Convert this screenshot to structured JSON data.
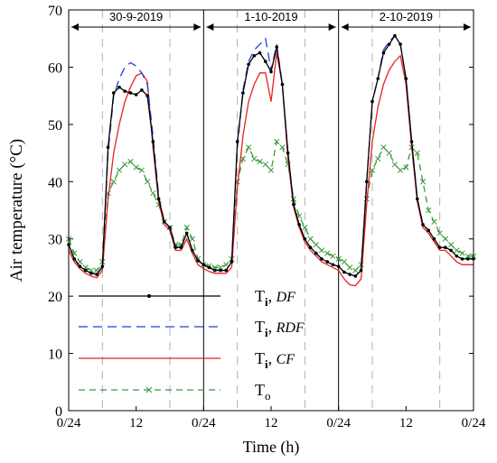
{
  "chart_data": {
    "type": "line",
    "xlabel": "Time (h)",
    "ylabel": "Air temperature (°C)",
    "xlim": [
      0,
      72
    ],
    "ylim": [
      0,
      70
    ],
    "x_ticks": [
      {
        "value": 0,
        "label": "0/24"
      },
      {
        "value": 12,
        "label": "12"
      },
      {
        "value": 24,
        "label": "0/24"
      },
      {
        "value": 36,
        "label": "12"
      },
      {
        "value": 48,
        "label": "0/24"
      },
      {
        "value": 60,
        "label": "12"
      },
      {
        "value": 72,
        "label": "0/24"
      }
    ],
    "y_ticks": [
      0,
      10,
      20,
      30,
      40,
      50,
      60,
      70
    ],
    "dashed_gridlines_h": [
      6,
      18,
      30,
      42,
      54,
      66
    ],
    "day_labels": [
      {
        "label": "30-9-2019",
        "start": 0,
        "end": 24
      },
      {
        "label": "1-10-2019",
        "start": 24,
        "end": 48
      },
      {
        "label": "2-10-2019",
        "start": 48,
        "end": 72
      }
    ],
    "legend_position": "bottom-left",
    "series": [
      {
        "key": "df",
        "color": "#000000",
        "dash": "",
        "marker": "dot",
        "legend_main": "T",
        "legend_sub": "i",
        "legend_suffix": "DF",
        "x": [
          0,
          1,
          2,
          3,
          4,
          5,
          6,
          7,
          8,
          9,
          10,
          11,
          12,
          13,
          14,
          15,
          16,
          17,
          18,
          19,
          20,
          21,
          22,
          23,
          24,
          25,
          26,
          27,
          28,
          29,
          30,
          31,
          32,
          33,
          34,
          35,
          36,
          37,
          38,
          39,
          40,
          41,
          42,
          43,
          44,
          45,
          46,
          47,
          48,
          49,
          50,
          51,
          52,
          53,
          54,
          55,
          56,
          57,
          58,
          59,
          60,
          61,
          62,
          63,
          64,
          65,
          66,
          67,
          68,
          69,
          70,
          71,
          72
        ],
        "y": [
          29,
          26.5,
          25.2,
          24.5,
          24,
          23.8,
          25.2,
          46,
          55.5,
          56.5,
          55.8,
          55.5,
          55.2,
          56,
          55,
          47,
          37,
          33,
          32,
          28.5,
          28.5,
          31,
          28,
          26.2,
          25.5,
          25,
          24.5,
          24.5,
          24.5,
          26,
          47,
          55.5,
          60.5,
          62,
          62.5,
          61,
          59.2,
          63.5,
          57,
          45,
          36,
          32.5,
          30,
          28.5,
          27.5,
          26.5,
          26,
          25.5,
          25.2,
          24.2,
          23.8,
          23.5,
          24.5,
          40,
          54,
          58,
          62.5,
          64,
          65.5,
          64,
          58,
          47,
          37,
          32.5,
          31.5,
          30,
          28.5,
          28.5,
          28,
          27,
          26.5,
          26.5,
          26.5
        ]
      },
      {
        "key": "rdf",
        "color": "#1f3fd9",
        "dash": "10,6",
        "marker": "none",
        "legend_main": "T",
        "legend_sub": "i",
        "legend_suffix": "RDF",
        "x": [
          0,
          1,
          2,
          3,
          4,
          5,
          6,
          7,
          8,
          9,
          10,
          11,
          12,
          13,
          14,
          15,
          16,
          17,
          18,
          19,
          20,
          21,
          22,
          23,
          24,
          25,
          26,
          27,
          28,
          29,
          30,
          31,
          32,
          33,
          34,
          35,
          36,
          37,
          38,
          39,
          40,
          41,
          42,
          43,
          44,
          45,
          46,
          47,
          48,
          49,
          50,
          51,
          52,
          53,
          54,
          55,
          56,
          57,
          58,
          59,
          60,
          61,
          62,
          63,
          64,
          65,
          66,
          67,
          68,
          69,
          70,
          71,
          72
        ],
        "y": [
          29,
          26.5,
          25.2,
          24.5,
          24,
          23.8,
          25,
          45,
          55,
          58,
          60,
          60.8,
          60.2,
          59,
          57,
          48,
          37.5,
          33,
          32,
          28.5,
          28.5,
          31,
          28,
          26.2,
          25.5,
          25,
          24.5,
          24.5,
          24.5,
          26,
          46,
          56,
          61,
          63,
          64,
          65,
          59.5,
          64,
          57,
          45,
          36,
          32.5,
          30,
          28.5,
          27.5,
          26.5,
          26,
          25.5,
          25.2,
          24.2,
          23.8,
          23.5,
          24.5,
          40,
          54,
          58,
          63,
          64.5,
          65.5,
          64,
          58,
          47,
          37,
          32.5,
          31.5,
          30,
          28.5,
          28.5,
          28,
          27,
          26.5,
          26.5,
          26.5
        ]
      },
      {
        "key": "cf",
        "color": "#e8231f",
        "dash": "",
        "marker": "none",
        "legend_main": "T",
        "legend_sub": "i",
        "legend_suffix": "CF",
        "x": [
          0,
          1,
          2,
          3,
          4,
          5,
          6,
          7,
          8,
          9,
          10,
          11,
          12,
          13,
          14,
          15,
          16,
          17,
          18,
          19,
          20,
          21,
          22,
          23,
          24,
          25,
          26,
          27,
          28,
          29,
          30,
          31,
          32,
          33,
          34,
          35,
          36,
          37,
          38,
          39,
          40,
          41,
          42,
          43,
          44,
          45,
          46,
          47,
          48,
          49,
          50,
          51,
          52,
          53,
          54,
          55,
          56,
          57,
          58,
          59,
          60,
          61,
          62,
          63,
          64,
          65,
          66,
          67,
          68,
          69,
          70,
          71,
          72
        ],
        "y": [
          28,
          26,
          24.8,
          24,
          23.5,
          23.2,
          24.5,
          37,
          45,
          50,
          54,
          56.5,
          58.5,
          59,
          57.5,
          46,
          36.5,
          32.5,
          31.5,
          28,
          28,
          30,
          27.5,
          25.5,
          24.8,
          24.3,
          24,
          24,
          24,
          25,
          39,
          48,
          54,
          57,
          59,
          59,
          54,
          62.5,
          57,
          44,
          35.5,
          32,
          29.5,
          28,
          27,
          26,
          25.5,
          25,
          24.5,
          23,
          22,
          21.8,
          23,
          36,
          47,
          53,
          57,
          59.5,
          61,
          62,
          57,
          46,
          36.5,
          32,
          31,
          29.5,
          28,
          28,
          27,
          26,
          25.5,
          25.5,
          25.5
        ]
      },
      {
        "key": "to",
        "color": "#3a9a3a",
        "dash": "7,5",
        "marker": "x",
        "legend_main": "T",
        "legend_sub": "o",
        "legend_suffix": "",
        "x": [
          0,
          1,
          2,
          3,
          4,
          5,
          6,
          7,
          8,
          9,
          10,
          11,
          12,
          13,
          14,
          15,
          16,
          17,
          18,
          19,
          20,
          21,
          22,
          23,
          24,
          25,
          26,
          27,
          28,
          29,
          30,
          31,
          32,
          33,
          34,
          35,
          36,
          37,
          38,
          39,
          40,
          41,
          42,
          43,
          44,
          45,
          46,
          47,
          48,
          49,
          50,
          51,
          52,
          53,
          54,
          55,
          56,
          57,
          58,
          59,
          60,
          61,
          62,
          63,
          64,
          65,
          66,
          67,
          68,
          69,
          70,
          71,
          72
        ],
        "y": [
          30,
          27.5,
          26,
          25,
          24.5,
          24.5,
          26,
          38,
          40,
          42,
          43,
          43.5,
          42.5,
          42,
          40,
          38,
          36,
          33,
          32,
          29,
          29,
          32,
          30,
          26.5,
          25.5,
          25.3,
          25,
          25,
          25.5,
          26.5,
          40,
          44,
          46,
          44,
          43.5,
          43,
          42,
          47,
          46,
          43,
          37,
          34,
          32,
          30,
          29,
          28,
          27.5,
          27,
          26.5,
          26,
          25,
          24.5,
          25.5,
          37,
          42,
          44,
          46,
          45,
          43,
          42,
          42.5,
          46,
          45,
          40,
          35,
          33,
          31,
          30,
          29,
          28,
          27.5,
          27,
          27
        ]
      }
    ]
  }
}
